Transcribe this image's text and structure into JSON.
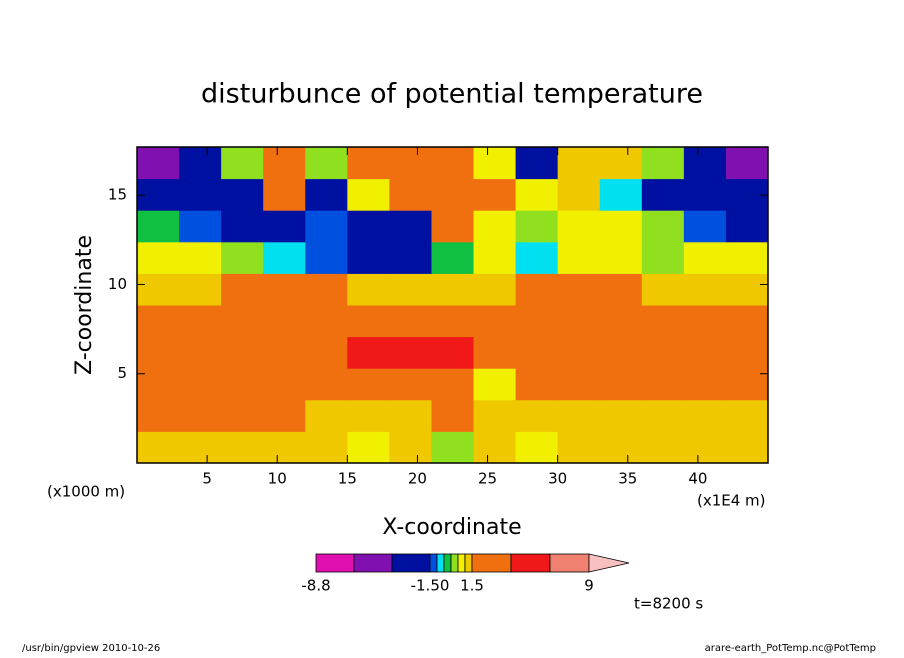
{
  "chart_data": {
    "type": "contour",
    "title": "disturbunce of potential temperature",
    "xlabel": "X-coordinate",
    "ylabel": "Z-coordinate",
    "x_unit": "(x1000 m)",
    "x_scale_note": "(x1E4 m)",
    "time_label": "t=8200 s",
    "footer_left": "/usr/bin/gpview  2010-10-26",
    "footer_right": "arare-earth_PotTemp.nc@PotTemp",
    "xlim": [
      0,
      45
    ],
    "ylim": [
      0,
      17.7
    ],
    "xticks": [
      5,
      10,
      15,
      20,
      25,
      30,
      35,
      40
    ],
    "yticks": [
      5,
      10,
      15
    ],
    "x": [
      1.5,
      4.5,
      7.5,
      10.5,
      13.5,
      16.5,
      19.5,
      22.5,
      25.5,
      28.5,
      31.5,
      34.5,
      37.5,
      40.5,
      43.5
    ],
    "y": [
      0.885,
      2.655,
      4.425,
      6.195,
      7.965,
      9.735,
      11.505,
      13.275,
      15.045,
      16.815
    ],
    "z": [
      [
        1.2,
        1.2,
        1.2,
        1.2,
        1.2,
        0.7,
        1.2,
        0.3,
        1.2,
        0.8,
        1.2,
        1.2,
        1.2,
        1.2,
        1.2
      ],
      [
        2,
        2,
        2,
        2,
        1.3,
        1.3,
        1.2,
        2,
        1.3,
        1.3,
        1.3,
        1.3,
        1.3,
        1.3,
        1.3
      ],
      [
        3,
        3,
        3,
        3,
        3,
        2,
        3,
        2,
        0.7,
        3,
        3,
        3,
        2,
        2,
        2
      ],
      [
        3,
        3,
        3,
        3,
        3,
        5,
        5,
        5,
        3,
        3,
        3,
        3,
        3,
        3,
        3
      ],
      [
        3,
        3,
        3,
        3,
        3,
        3,
        3,
        3,
        3,
        3,
        3,
        3,
        3,
        3,
        3
      ],
      [
        1.3,
        1.3,
        2,
        2,
        2,
        1.3,
        1.3,
        1.3,
        1.3,
        2,
        2,
        2,
        1.3,
        1.3,
        1.3
      ],
      [
        0.7,
        0.7,
        0.3,
        -0.7,
        -1.2,
        -2,
        -2,
        -0.3,
        0.7,
        -0.7,
        0.7,
        0.7,
        0.3,
        0.7,
        0.7
      ],
      [
        -0.3,
        -1.2,
        -2,
        -2,
        -1.2,
        -2,
        -2,
        2,
        0.7,
        0.3,
        0.7,
        0.7,
        0.3,
        -1.2,
        -2
      ],
      [
        -2,
        -2,
        -2,
        2,
        -2,
        0.7,
        2,
        2,
        2,
        0.7,
        1.2,
        -0.7,
        -2,
        -2,
        -2
      ],
      [
        -4,
        -2,
        0.3,
        2,
        0.3,
        2,
        2,
        2,
        0.7,
        -2,
        1.2,
        1.2,
        0.3,
        -2,
        -4
      ]
    ],
    "colorbar": {
      "levels": [
        -8.8,
        -6,
        -3,
        -1.5,
        -1,
        -0.5,
        0,
        0.5,
        1,
        1.5,
        4,
        6.5,
        9
      ],
      "colors": [
        "#e010b0",
        "#8010b0",
        "#0010a0",
        "#0050e0",
        "#00e0f0",
        "#10c040",
        "#90e020",
        "#f0f000",
        "#f0c800",
        "#f07010",
        "#f01818",
        "#f08070"
      ],
      "over_color": "#f8c0c0",
      "ticks": [
        -8.8,
        {
          "value": -1.5,
          "label": "-1.50"
        },
        1.5,
        9
      ]
    }
  }
}
